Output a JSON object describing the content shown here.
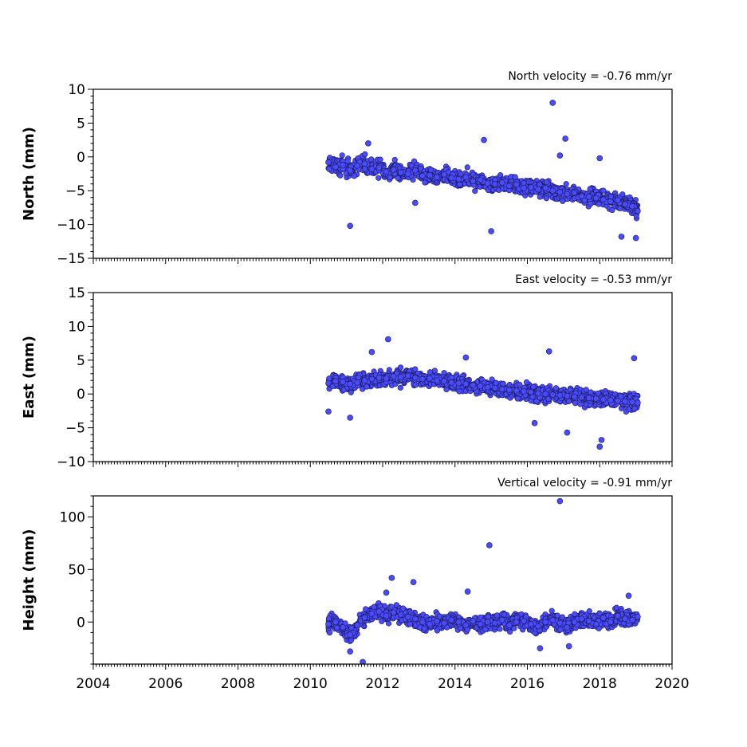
{
  "colors": {
    "marker_fill": "#4a4aff",
    "marker_edge": "#1a1a55",
    "axes": "#000000"
  },
  "chart_data": [
    {
      "type": "scatter",
      "title": "North velocity = -0.76 mm/yr",
      "xlabel": "",
      "ylabel": "North (mm)",
      "xlim": [
        2004,
        2020
      ],
      "ylim": [
        -15,
        10
      ],
      "x_ticks": [
        2004,
        2006,
        2008,
        2010,
        2012,
        2014,
        2016,
        2018,
        2020
      ],
      "y_ticks": [
        -15,
        -10,
        -5,
        0,
        5,
        10
      ],
      "y_tick_labels": [
        "−15",
        "−10",
        "−5",
        "0",
        "5",
        "10"
      ],
      "grid": false,
      "x_tick_labels_shown": false,
      "series": [
        {
          "x": [
            2010.5,
            2010.7,
            2010.9,
            2011.1,
            2011.3,
            2011.5,
            2011.7,
            2011.9,
            2012.1,
            2012.3,
            2012.5,
            2012.7,
            2012.9,
            2013.1,
            2013.3,
            2013.5,
            2013.7,
            2013.9,
            2014.1,
            2014.3,
            2014.5,
            2014.7,
            2014.9,
            2015.1,
            2015.3,
            2015.5,
            2015.7,
            2015.9,
            2016.1,
            2016.3,
            2016.5,
            2016.7,
            2016.9,
            2017.1,
            2017.3,
            2017.5,
            2017.7,
            2017.9,
            2018.1,
            2018.3,
            2018.5,
            2018.7,
            2018.9,
            2019.05,
            2011.1,
            2014.8,
            2015.0,
            2016.7,
            2016.9,
            2017.05,
            2018.0,
            2018.6,
            2019.0,
            2011.6,
            2012.9
          ],
          "y": [
            -0.8,
            -1.5,
            -1.2,
            -2.0,
            -1.3,
            -1.0,
            -1.8,
            -1.6,
            -2.2,
            -1.9,
            -2.3,
            -2.5,
            -2.0,
            -2.8,
            -2.7,
            -3.0,
            -2.6,
            -3.1,
            -3.3,
            -3.0,
            -3.6,
            -3.4,
            -3.9,
            -4.0,
            -3.8,
            -4.3,
            -4.1,
            -4.6,
            -4.5,
            -4.8,
            -4.6,
            -5.0,
            -5.2,
            -5.5,
            -5.3,
            -5.8,
            -5.9,
            -6.1,
            -6.3,
            -6.6,
            -6.4,
            -7.0,
            -7.3,
            -8.0,
            -10.2,
            2.5,
            -11.0,
            8.0,
            0.2,
            2.7,
            -0.2,
            -11.8,
            -12.0,
            2.0,
            -6.8
          ]
        }
      ],
      "annotations": []
    },
    {
      "type": "scatter",
      "title": "East velocity = -0.53 mm/yr",
      "xlabel": "",
      "ylabel": "East (mm)",
      "xlim": [
        2004,
        2020
      ],
      "ylim": [
        -10,
        15
      ],
      "x_ticks": [
        2004,
        2006,
        2008,
        2010,
        2012,
        2014,
        2016,
        2018,
        2020
      ],
      "y_ticks": [
        -10,
        -5,
        0,
        5,
        10,
        15
      ],
      "y_tick_labels": [
        "−10",
        "−5",
        "0",
        "5",
        "10",
        "15"
      ],
      "grid": false,
      "x_tick_labels_shown": false,
      "series": [
        {
          "x": [
            2010.5,
            2010.7,
            2010.9,
            2011.1,
            2011.3,
            2011.5,
            2011.7,
            2011.9,
            2012.1,
            2012.3,
            2012.5,
            2012.7,
            2012.9,
            2013.1,
            2013.3,
            2013.5,
            2013.7,
            2013.9,
            2014.1,
            2014.3,
            2014.5,
            2014.7,
            2014.9,
            2015.1,
            2015.3,
            2015.5,
            2015.7,
            2015.9,
            2016.1,
            2016.3,
            2016.5,
            2016.7,
            2016.9,
            2017.1,
            2017.3,
            2017.5,
            2017.7,
            2017.9,
            2018.1,
            2018.3,
            2018.5,
            2018.7,
            2018.9,
            2019.05,
            2010.5,
            2011.1,
            2011.7,
            2012.15,
            2014.3,
            2016.6,
            2016.2,
            2017.1,
            2018.0,
            2018.05,
            2018.95
          ],
          "y": [
            1.6,
            1.9,
            1.8,
            1.5,
            1.7,
            2.0,
            2.2,
            2.4,
            2.3,
            2.6,
            2.5,
            2.7,
            2.4,
            2.2,
            2.3,
            2.0,
            1.9,
            1.7,
            1.6,
            1.5,
            1.3,
            1.2,
            1.0,
            0.9,
            0.7,
            0.6,
            0.5,
            0.4,
            0.3,
            0.1,
            0.0,
            -0.1,
            -0.2,
            -0.3,
            -0.4,
            -0.5,
            -0.6,
            -0.7,
            -0.8,
            -0.9,
            -1.0,
            -1.1,
            -1.2,
            -1.3,
            -2.6,
            -3.5,
            6.2,
            8.1,
            5.4,
            6.3,
            -4.3,
            -5.7,
            -7.8,
            -6.8,
            5.3
          ]
        }
      ],
      "annotations": []
    },
    {
      "type": "scatter",
      "title": "Vertical velocity = -0.91 mm/yr",
      "xlabel": "",
      "ylabel": "Height (mm)",
      "xlim": [
        2004,
        2020
      ],
      "ylim": [
        -40,
        120
      ],
      "x_ticks": [
        2004,
        2006,
        2008,
        2010,
        2012,
        2014,
        2016,
        2018,
        2020
      ],
      "y_ticks": [
        0,
        50,
        100
      ],
      "y_tick_labels": [
        "0",
        "50",
        "100"
      ],
      "grid": false,
      "x_tick_labels_shown": true,
      "series": [
        {
          "x": [
            2010.5,
            2010.7,
            2010.9,
            2011.1,
            2011.3,
            2011.5,
            2011.7,
            2011.9,
            2012.1,
            2012.3,
            2012.5,
            2012.7,
            2012.9,
            2013.1,
            2013.3,
            2013.5,
            2013.7,
            2013.9,
            2014.1,
            2014.3,
            2014.5,
            2014.7,
            2014.9,
            2015.1,
            2015.3,
            2015.5,
            2015.7,
            2015.9,
            2016.1,
            2016.3,
            2016.5,
            2016.7,
            2016.9,
            2017.1,
            2017.3,
            2017.5,
            2017.7,
            2017.9,
            2018.1,
            2018.3,
            2018.5,
            2018.7,
            2018.9,
            2019.05,
            2011.1,
            2011.45,
            2012.1,
            2012.25,
            2012.85,
            2014.35,
            2014.95,
            2016.9,
            2017.15,
            2016.35,
            2018.8
          ],
          "y": [
            -2,
            0,
            -5,
            -12,
            -3,
            4,
            8,
            10,
            6,
            9,
            7,
            5,
            3,
            0,
            -2,
            1,
            -1,
            2,
            0,
            -3,
            1,
            -2,
            0,
            -1,
            2,
            -3,
            0,
            1,
            -2,
            -4,
            0,
            2,
            -1,
            -5,
            0,
            3,
            1,
            -2,
            4,
            0,
            6,
            3,
            2,
            5,
            -28,
            -38,
            28,
            42,
            38,
            29,
            73,
            115,
            -23,
            -25,
            25
          ]
        }
      ],
      "annotations": []
    }
  ]
}
